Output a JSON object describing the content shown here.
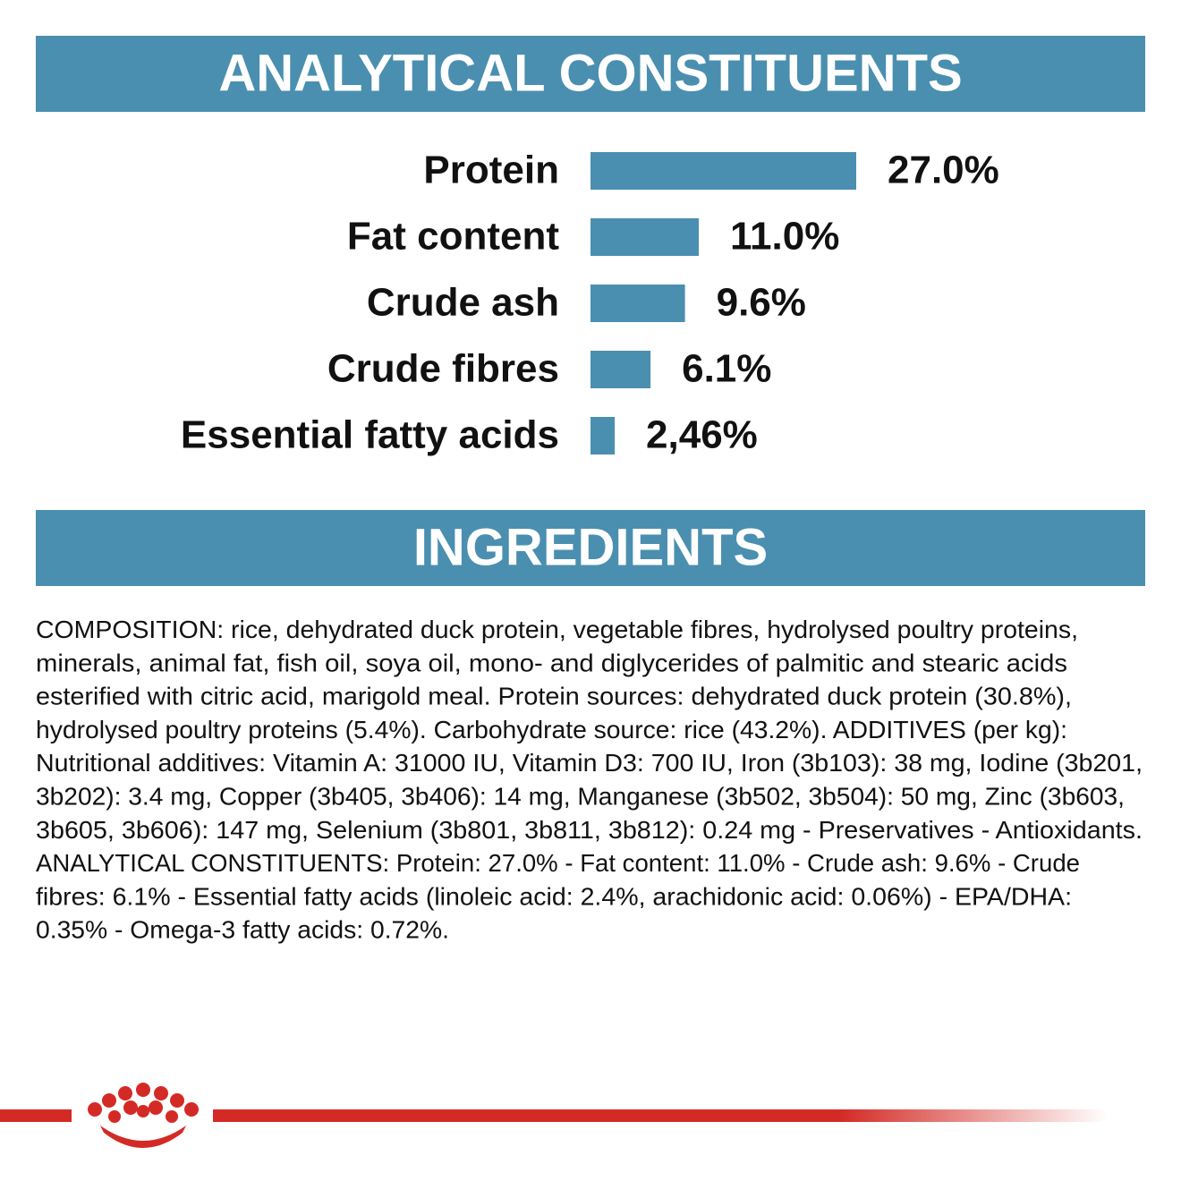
{
  "chart_data": {
    "type": "bar",
    "orientation": "horizontal",
    "title": "ANALYTICAL CONSTITUENTS",
    "categories": [
      "Protein",
      "Fat content",
      "Crude ash",
      "Crude fibres",
      "Essential fatty acids"
    ],
    "values": [
      27.0,
      11.0,
      9.6,
      6.1,
      2.46
    ],
    "value_labels": [
      "27.0%",
      "11.0%",
      "9.6%",
      "6.1%",
      "2,46%"
    ],
    "color": "#4a8fb0"
  },
  "ingredients": {
    "title": "INGREDIENTS",
    "lines": [
      "COMPOSITION: rice, dehydrated duck protein, vegetable fibres, hydrolysed poultry proteins,",
      "minerals, animal fat, fish oil, soya oil, mono- and diglycerides of palmitic and stearic acids",
      "esterified with citric acid, marigold meal. Protein sources: dehydrated duck protein (30.8%),",
      "hydrolysed poultry proteins (5.4%). Carbohydrate source: rice (43.2%). ADDITIVES (per kg):",
      "Nutritional additives: Vitamin A: 31000 IU, Vitamin D3: 700 IU, Iron (3b103): 38 mg, Iodine (3b201,",
      "3b202): 3.4 mg, Copper (3b405, 3b406): 14 mg, Manganese (3b502, 3b504): 50 mg, Zinc (3b603,",
      "3b605, 3b606): 147 mg, Selenium (3b801, 3b811, 3b812): 0.24 mg - Preservatives - Antioxidants.",
      "ANALYTICAL CONSTITUENTS: Protein: 27.0% - Fat content: 11.0% - Crude ash: 9.6% - Crude",
      "fibres: 6.1% - Essential fatty acids (linoleic acid: 2.4%, arachidonic acid: 0.06%) - EPA/DHA:",
      "0.35% - Omega-3 fatty acids: 0.72%."
    ]
  }
}
